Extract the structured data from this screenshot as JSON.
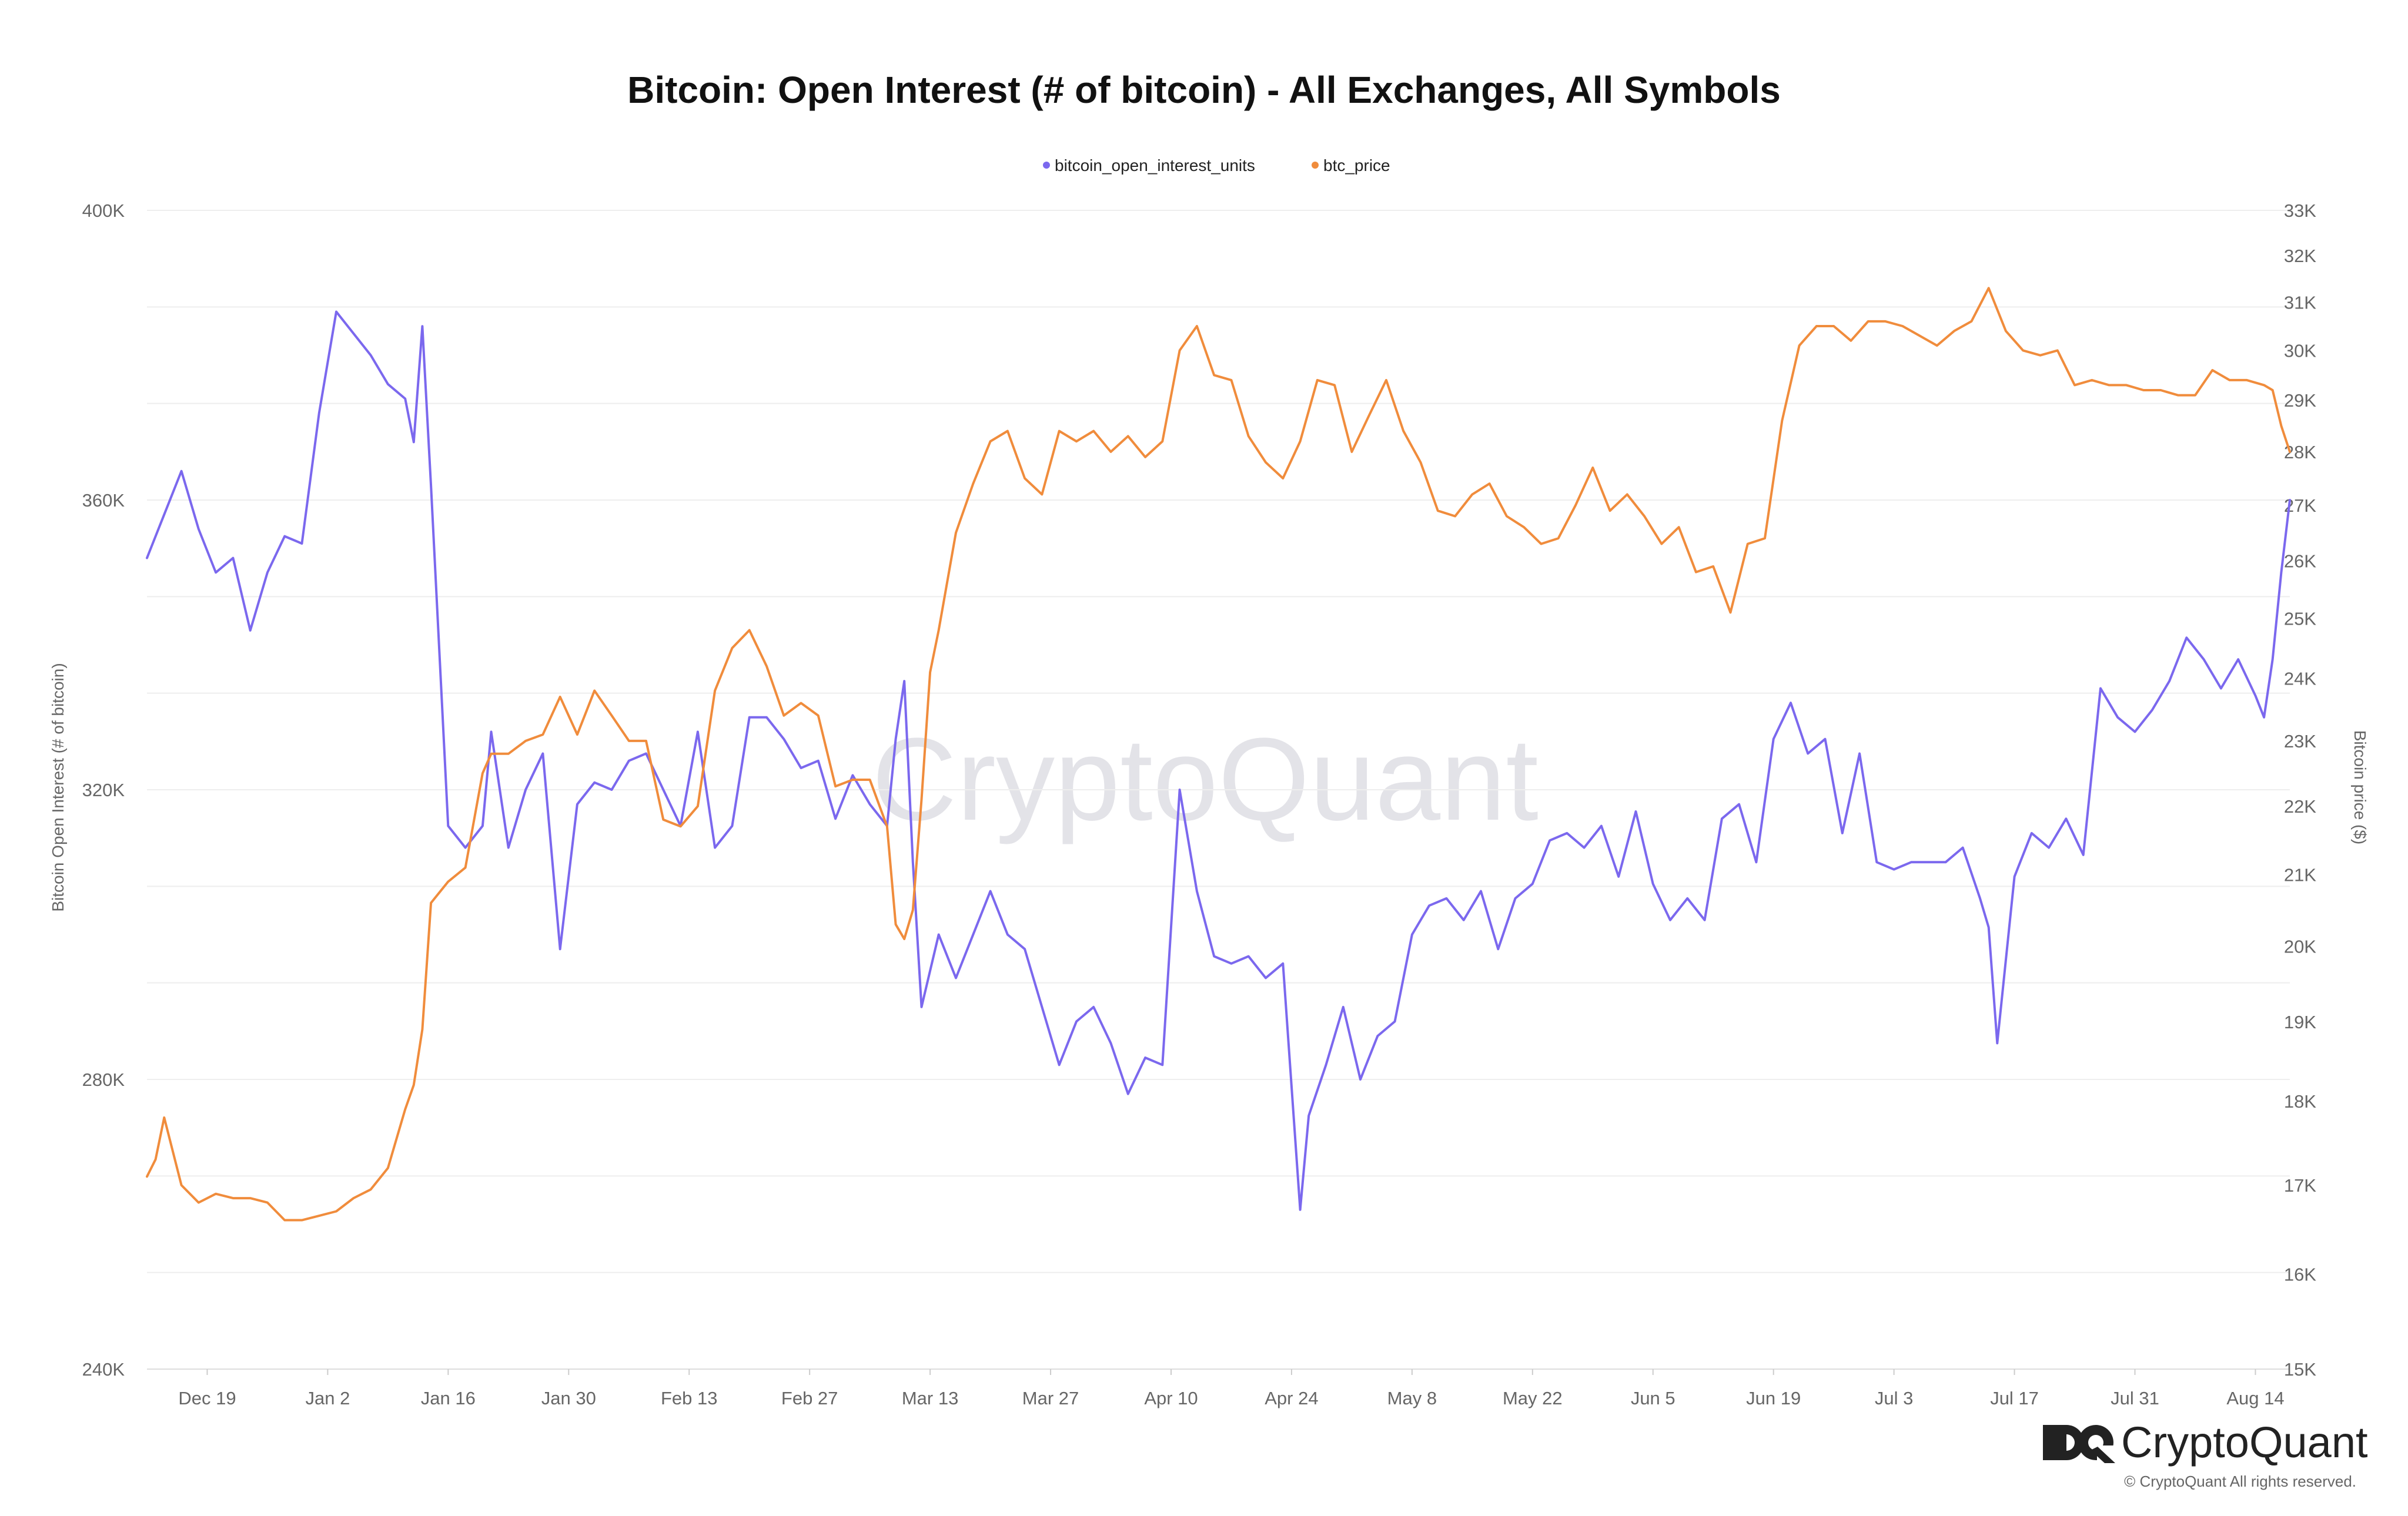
{
  "chart_data": {
    "type": "line",
    "title": "Bitcoin: Open Interest (# of bitcoin) - All Exchanges, All Symbols",
    "ylabel_left": "Bitcoin Open Interest (# of bitcoin)",
    "ylabel_right": "Bitcoin price ($)",
    "left_axis": {
      "min": 240000,
      "max": 400000,
      "ticks": [
        240000,
        280000,
        320000,
        360000,
        400000
      ],
      "tick_labels": [
        "240K",
        "280K",
        "320K",
        "360K",
        "400K"
      ],
      "grid_values": [
        240000,
        253333,
        266667,
        280000,
        293333,
        306667,
        320000,
        333333,
        346667,
        360000,
        373333,
        386667,
        400000
      ]
    },
    "right_axis": {
      "scale": "log",
      "min": 15000,
      "max": 33000,
      "ticks": [
        15000,
        16000,
        17000,
        18000,
        19000,
        20000,
        21000,
        22000,
        23000,
        24000,
        25000,
        26000,
        27000,
        28000,
        29000,
        30000,
        31000,
        32000,
        33000
      ],
      "tick_labels": [
        "15K",
        "16K",
        "17K",
        "18K",
        "19K",
        "20K",
        "21K",
        "22K",
        "23K",
        "24K",
        "25K",
        "26K",
        "27K",
        "28K",
        "29K",
        "30K",
        "31K",
        "32K",
        "33K"
      ]
    },
    "x_axis": {
      "start": "2022-12-12",
      "end": "2023-08-18",
      "tick_dates": [
        "2022-12-19",
        "2023-01-02",
        "2023-01-16",
        "2023-01-30",
        "2023-02-13",
        "2023-02-27",
        "2023-03-13",
        "2023-03-27",
        "2023-04-10",
        "2023-04-24",
        "2023-05-08",
        "2023-05-22",
        "2023-06-05",
        "2023-06-19",
        "2023-07-03",
        "2023-07-17",
        "2023-07-31",
        "2023-08-14"
      ],
      "tick_labels": [
        "Dec 19",
        "Jan 2",
        "Jan 16",
        "Jan 30",
        "Feb 13",
        "Feb 27",
        "Mar 13",
        "Mar 27",
        "Apr 10",
        "Apr 24",
        "May 8",
        "May 22",
        "Jun 5",
        "Jun 19",
        "Jul 3",
        "Jul 17",
        "Jul 31",
        "Aug 14"
      ]
    },
    "legend_position": "top-center",
    "series": [
      {
        "name": "bitcoin_open_interest_units",
        "axis": "left",
        "color": "#7b68ee",
        "x": [
          "2022-12-12",
          "2022-12-14",
          "2022-12-16",
          "2022-12-18",
          "2022-12-20",
          "2022-12-22",
          "2022-12-24",
          "2022-12-26",
          "2022-12-28",
          "2022-12-30",
          "2023-01-01",
          "2023-01-03",
          "2023-01-05",
          "2023-01-07",
          "2023-01-09",
          "2023-01-11",
          "2023-01-12",
          "2023-01-13",
          "2023-01-14",
          "2023-01-16",
          "2023-01-18",
          "2023-01-20",
          "2023-01-21",
          "2023-01-23",
          "2023-01-25",
          "2023-01-27",
          "2023-01-29",
          "2023-01-31",
          "2023-02-02",
          "2023-02-04",
          "2023-02-06",
          "2023-02-08",
          "2023-02-10",
          "2023-02-12",
          "2023-02-14",
          "2023-02-16",
          "2023-02-18",
          "2023-02-20",
          "2023-02-22",
          "2023-02-24",
          "2023-02-26",
          "2023-02-28",
          "2023-03-02",
          "2023-03-04",
          "2023-03-06",
          "2023-03-08",
          "2023-03-09",
          "2023-03-10",
          "2023-03-11",
          "2023-03-12",
          "2023-03-13",
          "2023-03-14",
          "2023-03-16",
          "2023-03-18",
          "2023-03-20",
          "2023-03-22",
          "2023-03-24",
          "2023-03-26",
          "2023-03-28",
          "2023-03-30",
          "2023-04-01",
          "2023-04-03",
          "2023-04-05",
          "2023-04-07",
          "2023-04-09",
          "2023-04-11",
          "2023-04-13",
          "2023-04-15",
          "2023-04-17",
          "2023-04-19",
          "2023-04-21",
          "2023-04-23",
          "2023-04-25",
          "2023-04-26",
          "2023-04-28",
          "2023-04-30",
          "2023-05-02",
          "2023-05-04",
          "2023-05-06",
          "2023-05-08",
          "2023-05-10",
          "2023-05-12",
          "2023-05-14",
          "2023-05-16",
          "2023-05-18",
          "2023-05-20",
          "2023-05-22",
          "2023-05-24",
          "2023-05-26",
          "2023-05-28",
          "2023-05-30",
          "2023-06-01",
          "2023-06-03",
          "2023-06-05",
          "2023-06-07",
          "2023-06-09",
          "2023-06-11",
          "2023-06-13",
          "2023-06-15",
          "2023-06-17",
          "2023-06-19",
          "2023-06-21",
          "2023-06-23",
          "2023-06-25",
          "2023-06-27",
          "2023-06-29",
          "2023-07-01",
          "2023-07-03",
          "2023-07-05",
          "2023-07-07",
          "2023-07-09",
          "2023-07-11",
          "2023-07-13",
          "2023-07-14",
          "2023-07-15",
          "2023-07-17",
          "2023-07-19",
          "2023-07-21",
          "2023-07-23",
          "2023-07-25",
          "2023-07-27",
          "2023-07-29",
          "2023-07-31",
          "2023-08-02",
          "2023-08-04",
          "2023-08-06",
          "2023-08-08",
          "2023-08-10",
          "2023-08-12",
          "2023-08-14",
          "2023-08-15",
          "2023-08-16",
          "2023-08-17",
          "2023-08-18"
        ],
        "values": [
          352000,
          358000,
          364000,
          356000,
          350000,
          352000,
          342000,
          350000,
          355000,
          354000,
          372000,
          386000,
          383000,
          380000,
          376000,
          374000,
          368000,
          384000,
          362000,
          315000,
          312000,
          315000,
          328000,
          312000,
          320000,
          325000,
          298000,
          318000,
          321000,
          320000,
          324000,
          325000,
          320000,
          315000,
          328000,
          312000,
          315000,
          330000,
          330000,
          327000,
          323000,
          324000,
          316000,
          322000,
          318000,
          315000,
          327000,
          335000,
          310000,
          290000,
          295000,
          300000,
          294000,
          300000,
          306000,
          300000,
          298000,
          290000,
          282000,
          288000,
          290000,
          285000,
          278000,
          283000,
          282000,
          320000,
          306000,
          297000,
          296000,
          297000,
          294000,
          296000,
          262000,
          275000,
          282000,
          290000,
          280000,
          286000,
          288000,
          300000,
          304000,
          305000,
          302000,
          306000,
          298000,
          305000,
          307000,
          313000,
          314000,
          312000,
          315000,
          308000,
          317000,
          307000,
          302000,
          305000,
          302000,
          316000,
          318000,
          310000,
          327000,
          332000,
          325000,
          327000,
          314000,
          325000,
          310000,
          309000,
          310000,
          310000,
          310000,
          312000,
          305000,
          301000,
          285000,
          308000,
          314000,
          312000,
          316000,
          311000,
          334000,
          330000,
          328000,
          331000,
          335000,
          341000,
          338000,
          334000,
          338000,
          333000,
          330000,
          338000,
          350000,
          360000
        ]
      },
      {
        "name": "btc_price",
        "axis": "right",
        "color": "#f08c3c",
        "x": [
          "2022-12-12",
          "2022-12-13",
          "2022-12-14",
          "2022-12-16",
          "2022-12-18",
          "2022-12-20",
          "2022-12-22",
          "2022-12-24",
          "2022-12-26",
          "2022-12-28",
          "2022-12-30",
          "2023-01-01",
          "2023-01-03",
          "2023-01-05",
          "2023-01-07",
          "2023-01-09",
          "2023-01-11",
          "2023-01-12",
          "2023-01-13",
          "2023-01-14",
          "2023-01-16",
          "2023-01-18",
          "2023-01-20",
          "2023-01-21",
          "2023-01-23",
          "2023-01-25",
          "2023-01-27",
          "2023-01-29",
          "2023-01-31",
          "2023-02-02",
          "2023-02-04",
          "2023-02-06",
          "2023-02-08",
          "2023-02-10",
          "2023-02-12",
          "2023-02-14",
          "2023-02-16",
          "2023-02-18",
          "2023-02-20",
          "2023-02-22",
          "2023-02-24",
          "2023-02-26",
          "2023-02-28",
          "2023-03-02",
          "2023-03-04",
          "2023-03-06",
          "2023-03-08",
          "2023-03-09",
          "2023-03-10",
          "2023-03-11",
          "2023-03-12",
          "2023-03-13",
          "2023-03-14",
          "2023-03-16",
          "2023-03-18",
          "2023-03-20",
          "2023-03-22",
          "2023-03-24",
          "2023-03-26",
          "2023-03-28",
          "2023-03-30",
          "2023-04-01",
          "2023-04-03",
          "2023-04-05",
          "2023-04-07",
          "2023-04-09",
          "2023-04-11",
          "2023-04-13",
          "2023-04-15",
          "2023-04-17",
          "2023-04-19",
          "2023-04-21",
          "2023-04-23",
          "2023-04-25",
          "2023-04-27",
          "2023-04-29",
          "2023-05-01",
          "2023-05-03",
          "2023-05-05",
          "2023-05-07",
          "2023-05-09",
          "2023-05-11",
          "2023-05-13",
          "2023-05-15",
          "2023-05-17",
          "2023-05-19",
          "2023-05-21",
          "2023-05-23",
          "2023-05-25",
          "2023-05-27",
          "2023-05-29",
          "2023-05-31",
          "2023-06-02",
          "2023-06-04",
          "2023-06-06",
          "2023-06-08",
          "2023-06-10",
          "2023-06-12",
          "2023-06-14",
          "2023-06-16",
          "2023-06-18",
          "2023-06-20",
          "2023-06-22",
          "2023-06-24",
          "2023-06-26",
          "2023-06-28",
          "2023-06-30",
          "2023-07-02",
          "2023-07-04",
          "2023-07-06",
          "2023-07-08",
          "2023-07-10",
          "2023-07-12",
          "2023-07-14",
          "2023-07-16",
          "2023-07-18",
          "2023-07-20",
          "2023-07-22",
          "2023-07-24",
          "2023-07-26",
          "2023-07-28",
          "2023-07-30",
          "2023-08-01",
          "2023-08-03",
          "2023-08-05",
          "2023-08-07",
          "2023-08-09",
          "2023-08-11",
          "2023-08-13",
          "2023-08-15",
          "2023-08-16",
          "2023-08-17",
          "2023-08-18"
        ],
        "values": [
          17100,
          17300,
          17800,
          17000,
          16800,
          16900,
          16850,
          16850,
          16800,
          16600,
          16600,
          16650,
          16700,
          16850,
          16950,
          17200,
          17900,
          18200,
          18900,
          20600,
          20900,
          21100,
          22500,
          22800,
          22800,
          23000,
          23100,
          23700,
          23100,
          23800,
          23400,
          23000,
          23000,
          21800,
          21700,
          22000,
          23800,
          24500,
          24800,
          24200,
          23400,
          23600,
          23400,
          22300,
          22400,
          22400,
          21700,
          20300,
          20100,
          20500,
          22100,
          24100,
          24800,
          26500,
          27400,
          28200,
          28400,
          27500,
          27200,
          28400,
          28200,
          28400,
          28000,
          28300,
          27900,
          28200,
          30000,
          30500,
          29500,
          29400,
          28300,
          27800,
          27500,
          28200,
          29400,
          29300,
          28000,
          28700,
          29400,
          28400,
          27800,
          26900,
          26800,
          27200,
          27400,
          26800,
          26600,
          26300,
          26400,
          27000,
          27700,
          26900,
          27200,
          26800,
          26300,
          26600,
          25800,
          25900,
          25100,
          26300,
          26400,
          28600,
          30100,
          30500,
          30500,
          30200,
          30600,
          30600,
          30500,
          30300,
          30100,
          30400,
          30600,
          31300,
          30400,
          30000,
          29900,
          30000,
          29300,
          29400,
          29300,
          29300,
          29200,
          29200,
          29100,
          29100,
          29600,
          29400,
          29400,
          29300,
          29200,
          28500,
          28000
        ]
      }
    ]
  },
  "brand": {
    "watermark": "CryptoQuant",
    "logo_text": "CryptoQuant",
    "copyright": "© CryptoQuant All rights reserved."
  }
}
